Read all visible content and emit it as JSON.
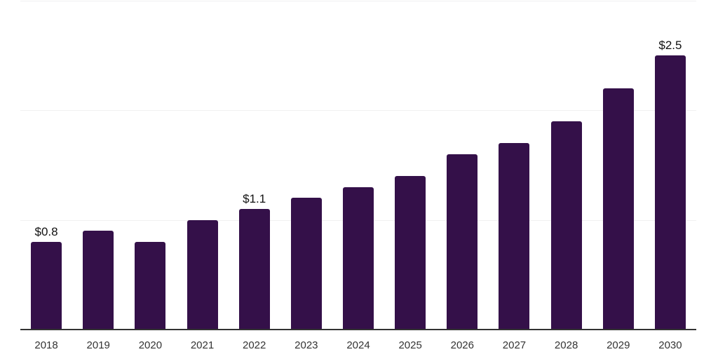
{
  "chart_data": {
    "type": "bar",
    "title": "",
    "xlabel": "",
    "ylabel": "",
    "categories": [
      "2018",
      "2019",
      "2020",
      "2021",
      "2022",
      "2023",
      "2024",
      "2025",
      "2026",
      "2027",
      "2028",
      "2029",
      "2030"
    ],
    "values": [
      0.8,
      0.9,
      0.8,
      1.0,
      1.1,
      1.2,
      1.3,
      1.4,
      1.6,
      1.7,
      1.9,
      2.2,
      2.5
    ],
    "value_labels": [
      "$0.8",
      "",
      "",
      "",
      "$1.1",
      "",
      "",
      "",
      "",
      "",
      "",
      "",
      "$2.5"
    ],
    "ylim": [
      0,
      3.0
    ],
    "grid": true,
    "gridline_values": [
      1.0,
      2.0,
      3.0
    ],
    "legend": "none",
    "colors": {
      "bar": "#341049",
      "axis_line": "#333333",
      "gridline": "#f0f0f1",
      "tick_label": "#333333",
      "value_label": "#111111",
      "background": "#ffffff"
    }
  }
}
